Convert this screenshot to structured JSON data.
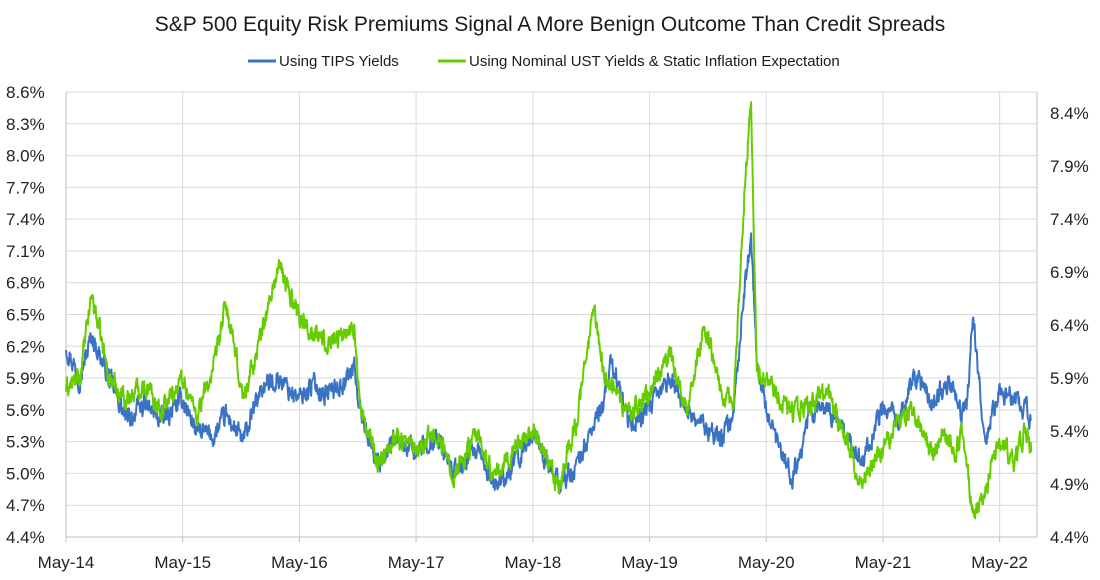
{
  "chart_data": {
    "type": "line",
    "title": "S&P 500 Equity Risk Premiums Signal A More Benign Outcome Than Credit Spreads",
    "legend_position": "top-center",
    "x_ticks": [
      "May-14",
      "May-15",
      "May-16",
      "May-17",
      "May-18",
      "May-19",
      "May-20",
      "May-21",
      "May-22"
    ],
    "x_range": [
      2014.33,
      2022.65
    ],
    "y_left": {
      "range": [
        4.4,
        8.6
      ],
      "ticks": [
        "4.4%",
        "4.7%",
        "5.0%",
        "5.3%",
        "5.6%",
        "5.9%",
        "6.2%",
        "6.5%",
        "6.8%",
        "7.1%",
        "7.4%",
        "7.7%",
        "8.0%",
        "8.3%",
        "8.6%"
      ]
    },
    "y_right": {
      "range": [
        4.4,
        8.6
      ],
      "ticks": [
        "4.4%",
        "4.9%",
        "5.4%",
        "5.9%",
        "6.4%",
        "6.9%",
        "7.4%",
        "7.9%",
        "8.4%"
      ]
    },
    "grid": true,
    "series": [
      {
        "name": "Using TIPS Yields",
        "color": "#3a73c4",
        "axis": "left",
        "x": [
          2014.33,
          2014.45,
          2014.55,
          2014.7,
          2014.85,
          2015.0,
          2015.15,
          2015.33,
          2015.45,
          2015.6,
          2015.7,
          2015.85,
          2016.0,
          2016.15,
          2016.33,
          2016.45,
          2016.55,
          2016.7,
          2016.8,
          2016.85,
          2017.0,
          2017.15,
          2017.33,
          2017.5,
          2017.65,
          2017.85,
          2018.0,
          2018.15,
          2018.33,
          2018.45,
          2018.55,
          2018.7,
          2018.85,
          2018.95,
          2019.0,
          2019.15,
          2019.33,
          2019.5,
          2019.65,
          2019.8,
          2019.95,
          2020.05,
          2020.15,
          2020.2,
          2020.25,
          2020.35,
          2020.45,
          2020.55,
          2020.7,
          2020.85,
          2021.0,
          2021.15,
          2021.33,
          2021.45,
          2021.6,
          2021.75,
          2021.9,
          2022.0,
          2022.05,
          2022.1,
          2022.2,
          2022.33,
          2022.45,
          2022.55,
          2022.6
        ],
        "y": [
          6.2,
          5.9,
          6.3,
          5.9,
          5.5,
          5.65,
          5.5,
          5.7,
          5.4,
          5.35,
          5.55,
          5.3,
          5.8,
          5.9,
          5.7,
          5.85,
          5.75,
          5.85,
          6.0,
          5.6,
          5.1,
          5.3,
          5.2,
          5.35,
          5.0,
          5.2,
          4.9,
          5.05,
          5.4,
          5.1,
          4.9,
          5.05,
          5.45,
          5.7,
          6.1,
          5.45,
          5.6,
          5.9,
          5.6,
          5.45,
          5.3,
          5.6,
          6.8,
          7.2,
          6.0,
          5.5,
          5.2,
          4.95,
          5.55,
          5.6,
          5.4,
          5.1,
          5.65,
          5.5,
          5.9,
          5.7,
          5.85,
          5.55,
          5.65,
          6.55,
          5.3,
          5.75,
          5.7,
          5.6,
          5.5
        ]
      },
      {
        "name": "Using Nominal UST Yields & Static Inflation Expectation",
        "color": "#66cc00",
        "axis": "right",
        "x": [
          2014.33,
          2014.45,
          2014.55,
          2014.7,
          2014.85,
          2015.0,
          2015.15,
          2015.33,
          2015.45,
          2015.6,
          2015.7,
          2015.85,
          2016.0,
          2016.15,
          2016.33,
          2016.45,
          2016.55,
          2016.7,
          2016.8,
          2016.85,
          2017.0,
          2017.15,
          2017.33,
          2017.5,
          2017.65,
          2017.85,
          2018.0,
          2018.15,
          2018.33,
          2018.45,
          2018.55,
          2018.65,
          2018.7,
          2018.85,
          2018.95,
          2019.0,
          2019.15,
          2019.33,
          2019.5,
          2019.65,
          2019.8,
          2019.95,
          2020.05,
          2020.15,
          2020.2,
          2020.25,
          2020.35,
          2020.45,
          2020.55,
          2020.7,
          2020.85,
          2021.0,
          2021.15,
          2021.33,
          2021.45,
          2021.6,
          2021.75,
          2021.85,
          2021.95,
          2022.0,
          2022.05,
          2022.1,
          2022.2,
          2022.33,
          2022.45,
          2022.55,
          2022.6
        ],
        "y": [
          5.8,
          5.9,
          6.7,
          5.9,
          5.7,
          5.85,
          5.6,
          5.9,
          5.55,
          6.0,
          6.6,
          5.7,
          6.3,
          6.95,
          6.5,
          6.3,
          6.25,
          6.3,
          6.4,
          5.6,
          5.1,
          5.35,
          5.25,
          5.4,
          5.0,
          5.35,
          4.95,
          5.2,
          5.45,
          5.1,
          4.85,
          5.3,
          5.45,
          6.55,
          5.9,
          5.85,
          5.55,
          5.75,
          6.15,
          5.6,
          6.4,
          5.8,
          5.6,
          7.8,
          8.5,
          6.0,
          5.9,
          5.7,
          5.55,
          5.65,
          5.8,
          5.35,
          4.9,
          5.25,
          5.45,
          5.6,
          5.2,
          5.35,
          5.2,
          5.35,
          5.05,
          4.6,
          4.8,
          5.35,
          5.1,
          5.4,
          5.2
        ]
      }
    ]
  }
}
